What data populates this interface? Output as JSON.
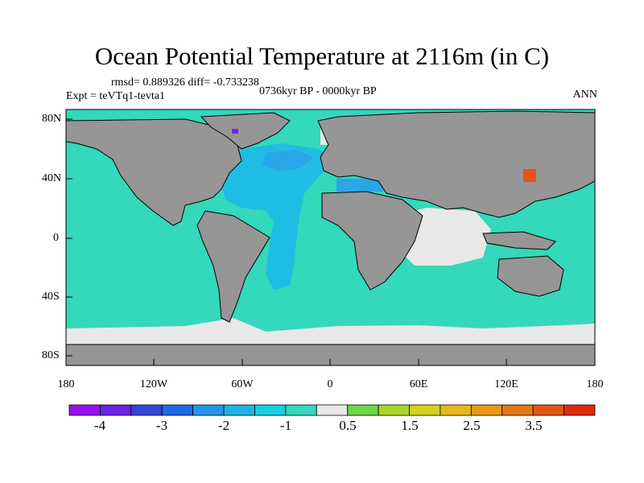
{
  "title": "Ocean Potential Temperature at 2116m (in C)",
  "stats_line": "rmsd= 0.889326 diff= -0.733238",
  "experiment_line": "Expt = teVTq1-tevta1",
  "period_line": "0736kyr BP - 0000kyr BP",
  "season": "ANN",
  "lat_labels": [
    "80N",
    "40N",
    "0",
    "40S",
    "80S"
  ],
  "lon_labels": [
    "180",
    "120W",
    "60W",
    "0",
    "60E",
    "120E",
    "180"
  ],
  "colors": {
    "land": "#969696",
    "coast": "#000000",
    "near_zero_ocean": "#34d8bb",
    "atlantic_cool": "#1fbde4",
    "atlantic_cooler": "#29a7e8",
    "neutral": "#e8e8e8",
    "warm": "#e5541a"
  },
  "colorbar": {
    "labels": [
      "-4",
      "-3",
      "-2",
      "-1",
      "0.5",
      "1.5",
      "2.5",
      "3.5"
    ],
    "colors": [
      "#9410f0",
      "#6a23e8",
      "#3545d8",
      "#1f6ae6",
      "#2696e4",
      "#1fb3e4",
      "#15cee0",
      "#34d8bb",
      "#e8e8e8",
      "#6cd64a",
      "#a8d626",
      "#d6d11c",
      "#e8b91a",
      "#e89a14",
      "#e27a14",
      "#e25514",
      "#e02a10"
    ]
  }
}
